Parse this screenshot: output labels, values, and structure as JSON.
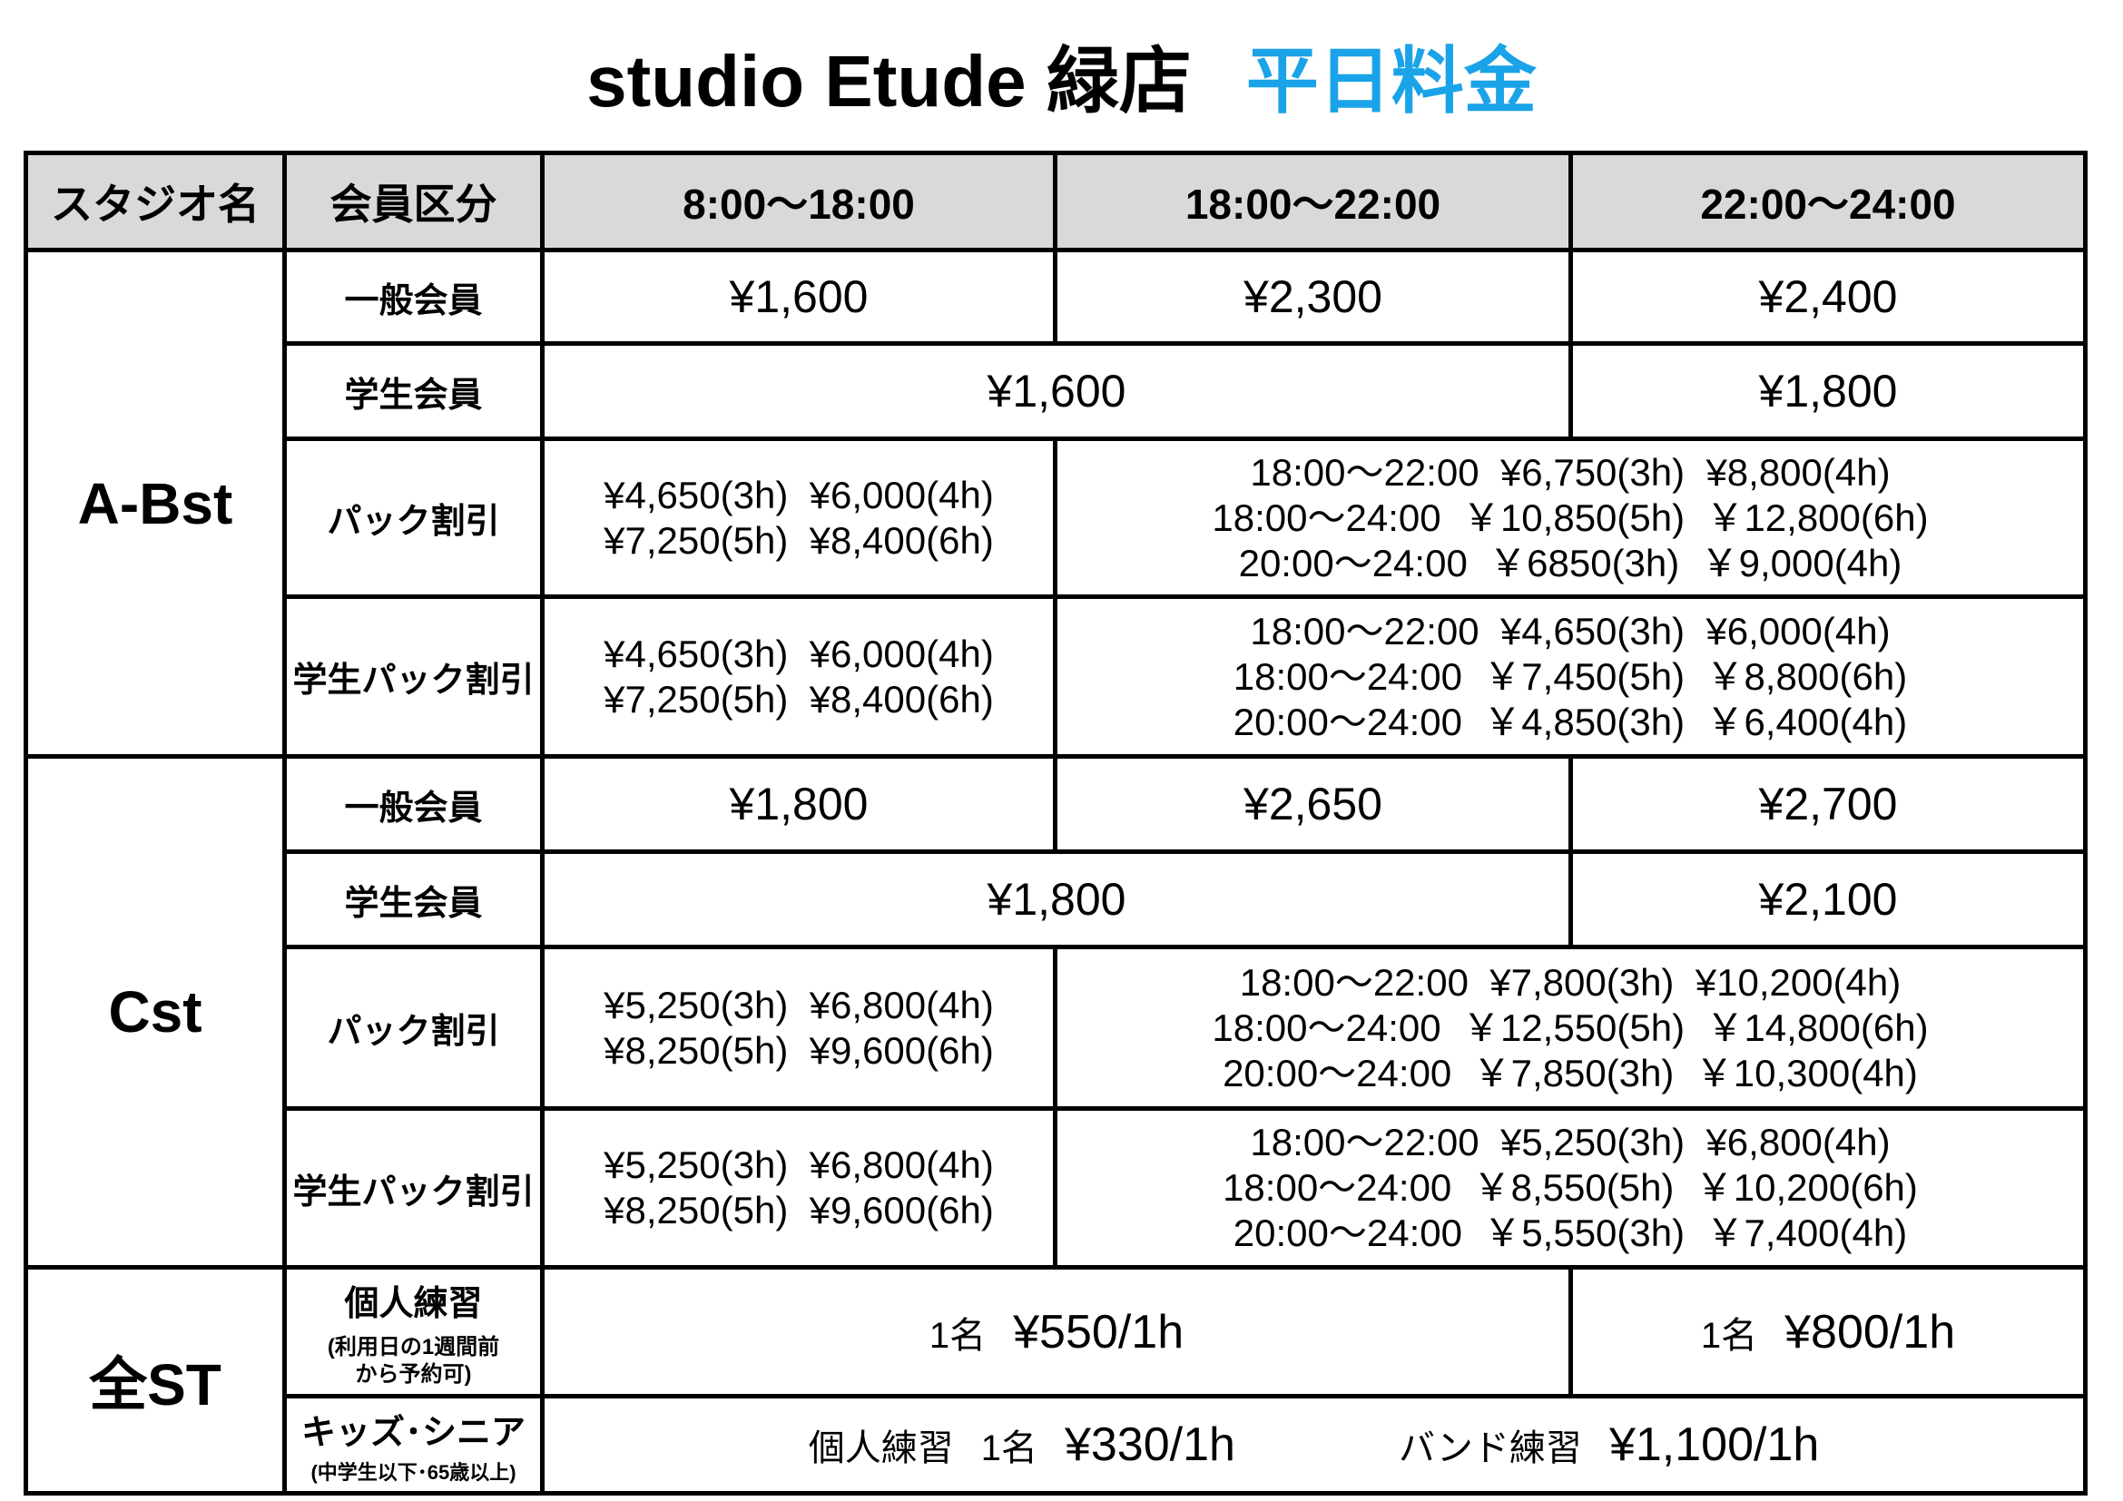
{
  "title": {
    "store": "studio Etude 緑店",
    "subtitle": "平日料金",
    "subtitle_color": "#1aa3e8"
  },
  "header": {
    "studio": "スタジオ名",
    "member": "会員区分",
    "t1": "8:00〜18:00",
    "t2": "18:00〜22:00",
    "t3": "22:00〜24:00"
  },
  "abst": {
    "name": "A-Bst",
    "general": {
      "label": "一般会員",
      "p1": "¥1,600",
      "p2": "¥2,300",
      "p3": "¥2,400"
    },
    "student": {
      "label": "学生会員",
      "p12": "¥1,600",
      "p3": "¥1,800"
    },
    "pack": {
      "label": "パック割引",
      "day": [
        "¥4,650(3h)  ¥6,000(4h)",
        "¥7,250(5h)  ¥8,400(6h)"
      ],
      "night": [
        "18:00〜22:00  ¥6,750(3h)  ¥8,800(4h)",
        "18:00〜24:00  ￥10,850(5h)  ￥12,800(6h)",
        "20:00〜24:00  ￥6850(3h)  ￥9,000(4h)"
      ]
    },
    "student_pack": {
      "label": "学生パック割引",
      "day": [
        "¥4,650(3h)  ¥6,000(4h)",
        "¥7,250(5h)  ¥8,400(6h)"
      ],
      "night": [
        "18:00〜22:00  ¥4,650(3h)  ¥6,000(4h)",
        "18:00〜24:00  ￥7,450(5h)  ￥8,800(6h)",
        "20:00〜24:00  ￥4,850(3h)  ￥6,400(4h)"
      ]
    }
  },
  "cst": {
    "name": "Cst",
    "general": {
      "label": "一般会員",
      "p1": "¥1,800",
      "p2": "¥2,650",
      "p3": "¥2,700"
    },
    "student": {
      "label": "学生会員",
      "p12": "¥1,800",
      "p3": "¥2,100"
    },
    "pack": {
      "label": "パック割引",
      "day": [
        "¥5,250(3h)  ¥6,800(4h)",
        "¥8,250(5h)  ¥9,600(6h)"
      ],
      "night": [
        "18:00〜22:00  ¥7,800(3h)  ¥10,200(4h)",
        "18:00〜24:00  ￥12,550(5h)  ￥14,800(6h)",
        "20:00〜24:00  ￥7,850(3h)  ￥10,300(4h)"
      ]
    },
    "student_pack": {
      "label": "学生パック割引",
      "day": [
        "¥5,250(3h)  ¥6,800(4h)",
        "¥8,250(5h)  ¥9,600(6h)"
      ],
      "night": [
        "18:00〜22:00  ¥5,250(3h)  ¥6,800(4h)",
        "18:00〜24:00  ￥8,550(5h)  ￥10,200(6h)",
        "20:00〜24:00  ￥5,550(3h)  ￥7,400(4h)"
      ]
    }
  },
  "all": {
    "name": "全ST",
    "solo": {
      "label": "個人練習",
      "note1": "(利用日の1週間前",
      "note2": "から予約可)",
      "count": "1名",
      "day_price": "¥550/1h",
      "night_price": "¥800/1h"
    },
    "kids": {
      "label": "キッズ･シニア",
      "note": "(中学生以下･65歳以上)",
      "solo_label": "個人練習",
      "solo_count": "1名",
      "solo_price": "¥330/1h",
      "band_label": "バンド練習",
      "band_price": "¥1,100/1h"
    }
  }
}
